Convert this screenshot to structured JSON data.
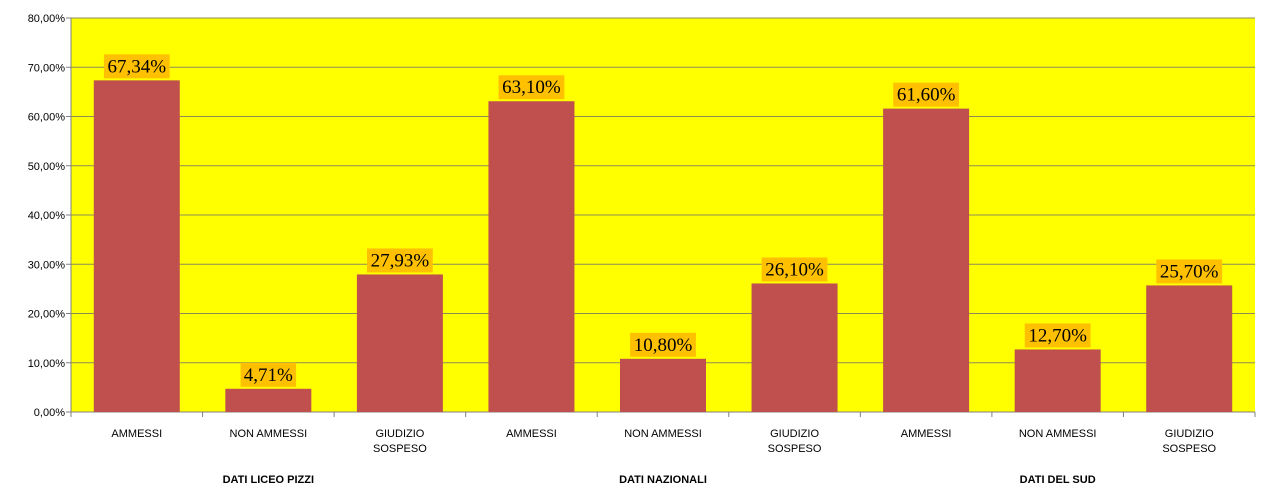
{
  "chart_data": {
    "type": "bar",
    "categories": [
      "AMMESSI",
      "NON AMMESSI",
      "GIUDIZIO SOSPESO",
      "AMMESSI",
      "NON AMMESSI",
      "GIUDIZIO SOSPESO",
      "AMMESSI",
      "NON AMMESSI",
      "GIUDIZIO SOSPESO"
    ],
    "groups": [
      {
        "label": "DATI LICEO PIZZI",
        "span": 3
      },
      {
        "label": "DATI NAZIONALI",
        "span": 3
      },
      {
        "label": "DATI DEL SUD",
        "span": 3
      }
    ],
    "values": [
      67.34,
      4.71,
      27.93,
      63.1,
      10.8,
      26.1,
      61.6,
      12.7,
      25.7
    ],
    "data_labels": [
      "67,34%",
      "4,71%",
      "27,93%",
      "63,10%",
      "10,80%",
      "26,10%",
      "61,60%",
      "12,70%",
      "25,70%"
    ],
    "y_ticks": [
      "0,00%",
      "10,00%",
      "20,00%",
      "30,00%",
      "40,00%",
      "50,00%",
      "60,00%",
      "70,00%",
      "80,00%"
    ],
    "ylim": [
      0,
      80
    ],
    "y_step": 10,
    "grid": true,
    "colors": {
      "plot_background": "#ffff00",
      "bar": "#c0504d",
      "label_background": "#ffc000",
      "gridline": "#8c8c5a",
      "axis": "#808080"
    }
  }
}
